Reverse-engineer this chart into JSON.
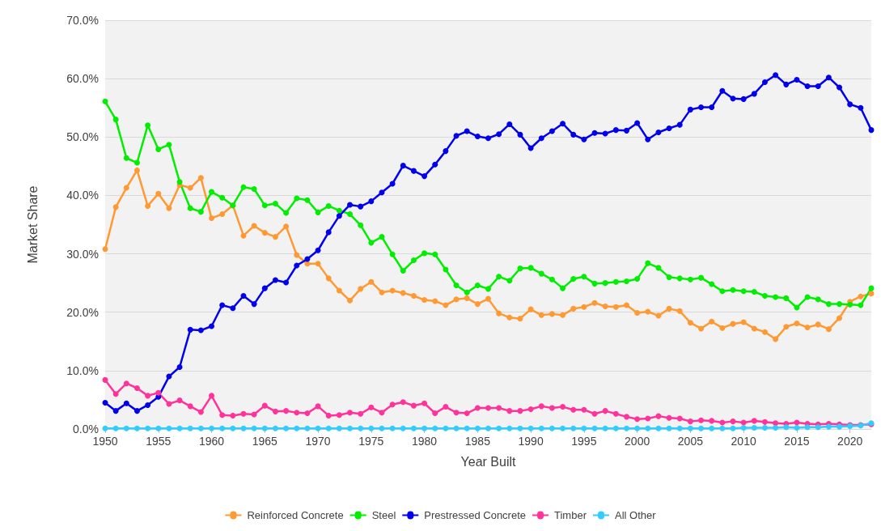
{
  "chart_data": {
    "type": "line",
    "xlabel": "Year Built",
    "ylabel": "Market Share",
    "x": [
      1950,
      1951,
      1952,
      1953,
      1954,
      1955,
      1956,
      1957,
      1958,
      1959,
      1960,
      1961,
      1962,
      1963,
      1964,
      1965,
      1966,
      1967,
      1968,
      1969,
      1970,
      1971,
      1972,
      1973,
      1974,
      1975,
      1976,
      1977,
      1978,
      1979,
      1980,
      1981,
      1982,
      1983,
      1984,
      1985,
      1986,
      1987,
      1988,
      1989,
      1990,
      1991,
      1992,
      1993,
      1994,
      1995,
      1996,
      1997,
      1998,
      1999,
      2000,
      2001,
      2002,
      2003,
      2004,
      2005,
      2006,
      2007,
      2008,
      2009,
      2010,
      2011,
      2012,
      2013,
      2014,
      2015,
      2016,
      2017,
      2018,
      2019,
      2020,
      2021,
      2022
    ],
    "series": [
      {
        "name": "Reinforced Concrete",
        "color": "#ff9933",
        "values": [
          30.8,
          38,
          41.3,
          44.3,
          38.2,
          40.3,
          37.8,
          41.8,
          41.3,
          43,
          36.1,
          36.8,
          38.3,
          33.1,
          34.8,
          33.6,
          32.9,
          34.7,
          29.8,
          28.3,
          28.3,
          25.8,
          23.7,
          22,
          24,
          25.2,
          23.4,
          23.7,
          23.3,
          22.8,
          22.1,
          21.9,
          21.2,
          22.2,
          22.4,
          21.4,
          22.3,
          19.8,
          19.1,
          18.9,
          20.5,
          19.5,
          19.7,
          19.5,
          20.6,
          20.9,
          21.6,
          21,
          20.9,
          21.2,
          19.9,
          20.1,
          19.4,
          20.6,
          20.2,
          18.2,
          17.2,
          18.4,
          17.3,
          18,
          18.3,
          17.2,
          16.6,
          15.4,
          17.5,
          18.1,
          17.4,
          17.9,
          17.1,
          19,
          21.8,
          22.7,
          23.2
        ]
      },
      {
        "name": "Steel",
        "color": "#00ee00",
        "values": [
          56.1,
          53,
          46.4,
          45.6,
          52,
          47.9,
          48.7,
          42.3,
          37.8,
          37.2,
          40.6,
          39.6,
          38.3,
          41.4,
          41.1,
          38.3,
          38.6,
          37,
          39.5,
          39.2,
          37.1,
          38.2,
          37.4,
          36.8,
          34.9,
          31.9,
          32.9,
          29.9,
          27.1,
          28.9,
          30.1,
          29.9,
          27.3,
          24.6,
          23.4,
          24.6,
          24,
          26.1,
          25.4,
          27.5,
          27.6,
          26.6,
          25.6,
          24.1,
          25.7,
          26.1,
          24.9,
          25,
          25.2,
          25.3,
          25.7,
          28.4,
          27.6,
          26,
          25.8,
          25.6,
          25.9,
          24.8,
          23.6,
          23.8,
          23.6,
          23.5,
          22.8,
          22.6,
          22.4,
          20.8,
          22.6,
          22.2,
          21.4,
          21.4,
          21.3,
          21.2,
          24.1
        ]
      },
      {
        "name": "Prestressed Concrete",
        "color": "#0000ee",
        "values": [
          4.5,
          3.1,
          4.4,
          3.1,
          4.1,
          5.5,
          9,
          10.6,
          17,
          16.9,
          17.6,
          21.2,
          20.7,
          22.8,
          21.4,
          24.1,
          25.5,
          25.1,
          28,
          29.1,
          30.6,
          33.7,
          36.5,
          38.4,
          38.1,
          39,
          40.5,
          42,
          45.1,
          44.2,
          43.3,
          45.3,
          47.6,
          50.2,
          51,
          50.1,
          49.8,
          50.5,
          52.2,
          50.4,
          48.1,
          49.8,
          51,
          52.3,
          50.4,
          49.6,
          50.7,
          50.6,
          51.2,
          51.1,
          52.4,
          49.6,
          50.8,
          51.5,
          52.1,
          54.7,
          55.1,
          55.1,
          57.9,
          56.6,
          56.5,
          57.4,
          59.4,
          60.6,
          59,
          59.8,
          58.7,
          58.7,
          60.2,
          58.5,
          55.6,
          55,
          51.2
        ]
      },
      {
        "name": "Timber",
        "color": "#ff3399",
        "values": [
          8.4,
          6,
          7.8,
          7,
          5.7,
          6.2,
          4.3,
          4.9,
          3.9,
          2.9,
          5.7,
          2.4,
          2.3,
          2.6,
          2.5,
          4,
          3,
          3.1,
          2.8,
          2.7,
          3.9,
          2.3,
          2.4,
          2.8,
          2.6,
          3.7,
          2.8,
          4.2,
          4.6,
          4,
          4.4,
          2.7,
          3.8,
          2.8,
          2.7,
          3.6,
          3.6,
          3.6,
          3.1,
          3.1,
          3.4,
          3.9,
          3.6,
          3.8,
          3.3,
          3.3,
          2.6,
          3.1,
          2.6,
          2.1,
          1.7,
          1.8,
          2.2,
          1.9,
          1.8,
          1.3,
          1.5,
          1.4,
          1.1,
          1.3,
          1.1,
          1.4,
          1.2,
          1,
          0.9,
          1.1,
          0.9,
          0.8,
          0.9,
          0.8,
          0.7,
          0.7,
          0.8
        ]
      },
      {
        "name": "All Other",
        "color": "#33ccff",
        "values": [
          0.1,
          0.1,
          0.1,
          0.1,
          0.1,
          0.1,
          0.1,
          0.1,
          0.1,
          0.1,
          0.1,
          0.1,
          0.1,
          0.1,
          0.1,
          0.1,
          0.1,
          0.1,
          0.1,
          0.1,
          0.1,
          0.1,
          0.1,
          0.1,
          0.1,
          0.1,
          0.1,
          0.1,
          0.1,
          0.1,
          0.1,
          0.1,
          0.1,
          0.1,
          0.1,
          0.1,
          0.1,
          0.1,
          0.1,
          0.1,
          0.1,
          0.1,
          0.1,
          0.1,
          0.1,
          0.1,
          0.1,
          0.1,
          0.1,
          0.1,
          0.1,
          0.1,
          0.1,
          0.1,
          0.1,
          0.1,
          0.1,
          0.1,
          0.1,
          0.1,
          0.2,
          0.2,
          0.2,
          0.2,
          0.3,
          0.2,
          0.3,
          0.3,
          0.4,
          0.4,
          0.5,
          0.6,
          1
        ]
      }
    ],
    "xlim": [
      1950,
      2022
    ],
    "xticks": [
      1950,
      1955,
      1960,
      1965,
      1970,
      1975,
      1980,
      1985,
      1990,
      1995,
      2000,
      2005,
      2010,
      2015,
      2020
    ],
    "ylim": [
      0,
      70
    ],
    "yticks": [
      {
        "value": 0,
        "label": "0.0%"
      },
      {
        "value": 10,
        "label": "10.0%"
      },
      {
        "value": 20,
        "label": "20.0%"
      },
      {
        "value": 30,
        "label": "30.0%"
      },
      {
        "value": 40,
        "label": "40.0%"
      },
      {
        "value": 50,
        "label": "50.0%"
      },
      {
        "value": 60,
        "label": "60.0%"
      },
      {
        "value": 70,
        "label": "70.0%"
      }
    ],
    "grid": "y",
    "legend": "bottom",
    "marker": "circle",
    "line_style": "solid"
  }
}
